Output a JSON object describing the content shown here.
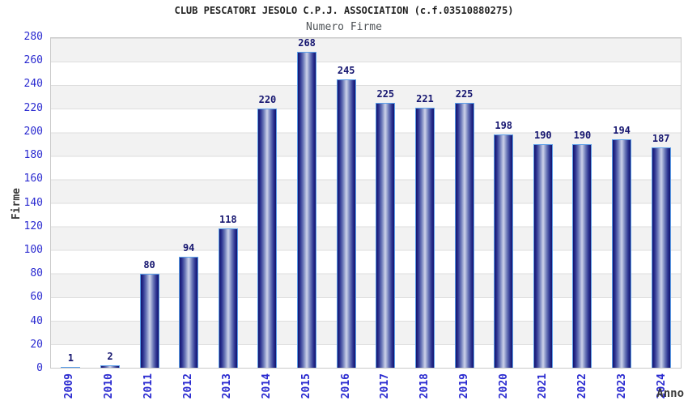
{
  "chart_data": {
    "type": "bar",
    "title": "CLUB PESCATORI JESOLO C.P.J. ASSOCIATION (c.f.03510880275)",
    "subtitle": "Numero Firme",
    "xlabel": "Anno",
    "ylabel": "Firme",
    "categories": [
      "2009",
      "2010",
      "2011",
      "2012",
      "2013",
      "2014",
      "2015",
      "2016",
      "2017",
      "2018",
      "2019",
      "2020",
      "2021",
      "2022",
      "2023",
      "2024"
    ],
    "values": [
      1,
      2,
      80,
      94,
      118,
      220,
      268,
      245,
      225,
      221,
      225,
      198,
      190,
      190,
      194,
      187
    ],
    "ylim": [
      0,
      280
    ],
    "ytick_step": 20,
    "grid": "horizontal gridlines every 20 with alternating gray/white bands",
    "legend_position": "none",
    "bar_value_labels": true,
    "x_tick_rotation_deg": 90,
    "colors": {
      "background": "#ffffff",
      "title": "#1f1f1f",
      "subtitle": "#505458",
      "tick-label": "#2a2ad0",
      "value-label": "#161670",
      "axis-title": "#3a3a3a",
      "bar-edge": "#13136e",
      "bar-mid": "#6a77b8",
      "bar-center": "#cdd2ea",
      "bar-border": "#5b9ee8",
      "band": "#f2f2f2",
      "gridline": "#dedede",
      "plot-border": "#c9c9c9"
    }
  }
}
